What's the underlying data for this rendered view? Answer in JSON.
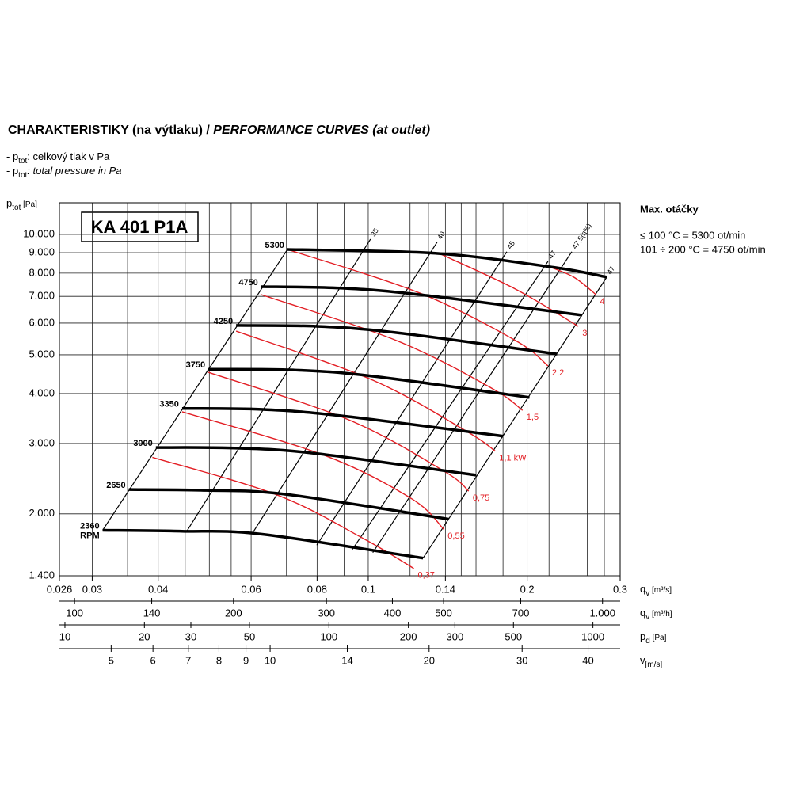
{
  "chart_data": {
    "type": "line",
    "title": "CHARAKTERISTIKY (na výtlaku) / ",
    "title_italic": "PERFORMANCE CURVES (at outlet)",
    "notes": [
      {
        "prefix": "- p",
        "sub": "tot",
        "text": ": celkový tlak v Pa"
      },
      {
        "prefix": "- p",
        "sub": "tot",
        "text": ": total pressure in Pa",
        "italic": true
      }
    ],
    "y_label": {
      "main": "p",
      "sub": "tot",
      "unit": " [Pa]"
    },
    "model": "KA 401 P1A",
    "info": {
      "title": "Max. otáčky",
      "lines": [
        "≤ 100 °C = 5300 ot/min",
        "101 ÷ 200 °C = 4750 ot/min"
      ]
    },
    "log_x": true,
    "log_y": true,
    "grid": true,
    "xlim": [
      0.026,
      0.3
    ],
    "ylim": [
      1400,
      12000
    ],
    "xticks": [
      0.026,
      0.03,
      0.04,
      0.06,
      0.08,
      0.1,
      0.14,
      0.2,
      0.3
    ],
    "xgrid": [
      0.03,
      0.035,
      0.04,
      0.045,
      0.05,
      0.055,
      0.06,
      0.07,
      0.08,
      0.09,
      0.1,
      0.11,
      0.12,
      0.13,
      0.14,
      0.15,
      0.16,
      0.18,
      0.2,
      0.22,
      0.24,
      0.26,
      0.28,
      0.3
    ],
    "x_label": {
      "main": "q",
      "sub": "v",
      "unit": " [m³/s]"
    },
    "yticks": [
      {
        "value": 1400,
        "label": "1.400"
      },
      {
        "value": 2000,
        "label": "2.000"
      },
      {
        "value": 3000,
        "label": "3.000"
      },
      {
        "value": 4000,
        "label": "4.000"
      },
      {
        "value": 5000,
        "label": "5.000"
      },
      {
        "value": 6000,
        "label": "6.000"
      },
      {
        "value": 7000,
        "label": "7.000"
      },
      {
        "value": 8000,
        "label": "8.000"
      },
      {
        "value": 9000,
        "label": "9.000"
      },
      {
        "value": 10000,
        "label": "10.000"
      }
    ],
    "secondary_axes": [
      {
        "label": {
          "main": "q",
          "sub": "v",
          "unit": " [m³/h]"
        },
        "xlim": [
          93.6,
          1080
        ],
        "ticks": [
          100,
          140,
          200,
          300,
          400,
          500,
          700,
          {
            "value": 1000,
            "label": "1.000"
          }
        ]
      },
      {
        "label": {
          "main": "p",
          "sub": "d",
          "unit": " [Pa]"
        },
        "xlim": [
          9.53,
          1268
        ],
        "ticks": [
          10,
          20,
          30,
          50,
          100,
          200,
          300,
          500,
          1000
        ]
      },
      {
        "label": {
          "main": "v",
          "sub": "[m/s]",
          "unit": ""
        },
        "xlim": [
          3.99,
          46
        ],
        "ticks": [
          5,
          6,
          7,
          8,
          9,
          10,
          14,
          20,
          30,
          40
        ]
      }
    ],
    "rpm_unit": "RPM",
    "series": [
      {
        "name": "5300",
        "color": "#000000",
        "x": [
          0.0703,
          0.134,
          0.225,
          0.283
        ],
        "y": [
          9170,
          8970,
          8270,
          7820
        ]
      },
      {
        "name": "4750",
        "color": "#000000",
        "x": [
          0.0627,
          0.0886,
          0.125,
          0.254
        ],
        "y": [
          7400,
          7340,
          7070,
          6280
        ]
      },
      {
        "name": "4250",
        "color": "#000000",
        "x": [
          0.0562,
          0.0799,
          0.113,
          0.228
        ],
        "y": [
          5920,
          5890,
          5680,
          5020
        ]
      },
      {
        "name": "3750",
        "color": "#000000",
        "x": [
          0.0498,
          0.072,
          0.102,
          0.202
        ],
        "y": [
          4600,
          4580,
          4420,
          3910
        ]
      },
      {
        "name": "3350",
        "color": "#000000",
        "x": [
          0.0444,
          0.0627,
          0.0886,
          0.18
        ],
        "y": [
          3670,
          3650,
          3520,
          3130
        ]
      },
      {
        "name": "3000",
        "color": "#000000",
        "x": [
          0.0396,
          0.0566,
          0.0799,
          0.16
        ],
        "y": [
          2930,
          2920,
          2830,
          2500
        ]
      },
      {
        "name": "2650",
        "color": "#000000",
        "x": [
          0.0352,
          0.0493,
          0.0696,
          0.142
        ],
        "y": [
          2300,
          2290,
          2240,
          1940
        ]
      },
      {
        "name": "2360",
        "color": "#000000",
        "x": [
          0.0314,
          0.0444,
          0.0627,
          0.127
        ],
        "y": [
          1820,
          1810,
          1780,
          1550
        ]
      }
    ],
    "power_curves": [
      {
        "name": "4",
        "color": "#e31e24",
        "x": [
          0.218,
          0.245,
          0.27
        ],
        "y": [
          8340,
          7820,
          7070
        ]
      },
      {
        "name": "3",
        "color": "#e31e24",
        "x": [
          0.136,
          0.19,
          0.25
        ],
        "y": [
          8970,
          7300,
          5890
        ]
      },
      {
        "name": "2,2",
        "color": "#e31e24",
        "x": [
          0.0703,
          0.125,
          0.19,
          0.219
        ],
        "y": [
          9170,
          7140,
          5430,
          4690
        ]
      },
      {
        "name": "1,5",
        "color": "#e31e24",
        "x": [
          0.0627,
          0.113,
          0.171,
          0.196
        ],
        "y": [
          7070,
          5430,
          4130,
          3630
        ]
      },
      {
        "name": "1,1 kW",
        "color": "#e31e24",
        "x": [
          0.0562,
          0.102,
          0.154,
          0.174
        ],
        "y": [
          5730,
          4320,
          3210,
          2870
        ]
      },
      {
        "name": "0,75",
        "color": "#e31e24",
        "x": [
          0.0498,
          0.0917,
          0.139,
          0.155
        ],
        "y": [
          4520,
          3440,
          2560,
          2280
        ]
      },
      {
        "name": "0,55",
        "color": "#e31e24",
        "x": [
          0.0444,
          0.0827,
          0.121,
          0.139
        ],
        "y": [
          3600,
          2800,
          2180,
          1830
        ]
      },
      {
        "name": "0,37",
        "color": "#e31e24",
        "x": [
          0.039,
          0.0672,
          0.0983,
          0.122
        ],
        "y": [
          2770,
          2230,
          1730,
          1460
        ]
      }
    ],
    "efficiency_lines": [
      {
        "name": null,
        "x": [
          0.0314,
          0.0703
        ],
        "y": [
          1820,
          9170
        ]
      },
      {
        "name": "35",
        "x": [
          0.0452,
          0.101
        ],
        "y": [
          1800,
          9730
        ]
      },
      {
        "name": "40",
        "x": [
          0.0602,
          0.135
        ],
        "y": [
          1780,
          9560
        ]
      },
      {
        "name": "45",
        "x": [
          0.0799,
          0.183
        ],
        "y": [
          1670,
          9050
        ]
      },
      {
        "name": "47",
        "x": [
          0.0933,
          0.219
        ],
        "y": [
          1630,
          8560
        ]
      },
      {
        "name": "47,5(η%)",
        "x": [
          0.102,
          0.243
        ],
        "y": [
          1600,
          9050
        ]
      },
      {
        "name": "47",
        "x": [
          0.127,
          0.283
        ],
        "y": [
          1550,
          7820
        ]
      }
    ]
  }
}
